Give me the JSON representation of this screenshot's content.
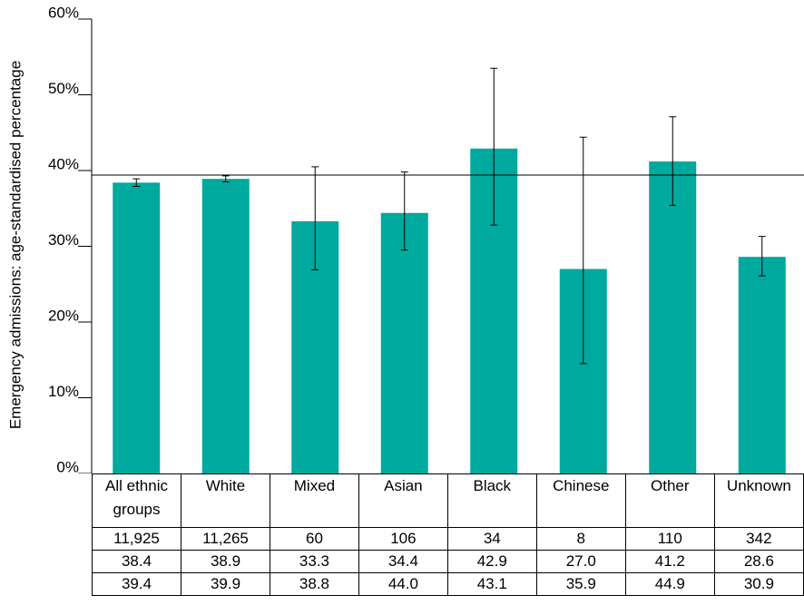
{
  "chart_data": {
    "type": "bar",
    "y_label": "Emergency admissions: age-standardised percentage",
    "categories": [
      "All ethnic groups",
      "White",
      "Mixed",
      "Asian",
      "Black",
      "Chinese",
      "Other",
      "Unknown"
    ],
    "values": [
      38.4,
      38.9,
      33.3,
      34.4,
      42.9,
      27.0,
      41.2,
      28.6
    ],
    "ci_lower": [
      37.9,
      38.5,
      26.9,
      29.5,
      32.8,
      14.5,
      35.4,
      26.1
    ],
    "ci_upper": [
      38.9,
      39.3,
      40.5,
      39.8,
      53.5,
      44.4,
      47.1,
      31.3
    ],
    "reference_line": 39.4,
    "color": "#00a99d",
    "ylim": [
      0,
      60
    ],
    "yticks": [
      {
        "value": 0,
        "label": "0%"
      },
      {
        "value": 10,
        "label": "10%"
      },
      {
        "value": 20,
        "label": "20%"
      },
      {
        "value": 30,
        "label": "30%"
      },
      {
        "value": 40,
        "label": "40%"
      },
      {
        "value": 50,
        "label": "50%"
      },
      {
        "value": 60,
        "label": "60%"
      }
    ],
    "table_rows": [
      [
        "11,925",
        "11,265",
        "60",
        "106",
        "34",
        "8",
        "110",
        "342"
      ],
      [
        "38.4",
        "38.9",
        "33.3",
        "34.4",
        "42.9",
        "27.0",
        "41.2",
        "28.6"
      ],
      [
        "39.4",
        "39.9",
        "38.8",
        "44.0",
        "43.1",
        "35.9",
        "44.9",
        "30.9"
      ]
    ]
  }
}
